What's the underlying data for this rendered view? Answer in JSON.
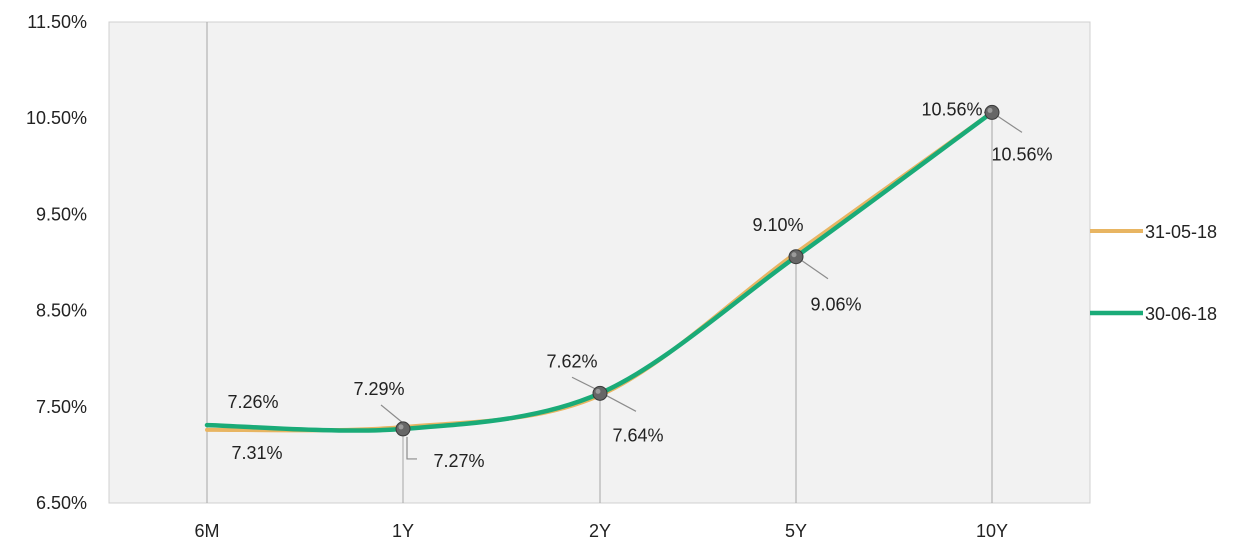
{
  "chart_data": {
    "type": "line",
    "categories": [
      "6M",
      "1Y",
      "2Y",
      "5Y",
      "10Y"
    ],
    "yticks": [
      "6.50%",
      "7.50%",
      "8.50%",
      "9.50%",
      "10.50%",
      "11.50%"
    ],
    "ylim": [
      6.5,
      11.5
    ],
    "grid": false,
    "legend_position": "right",
    "plot_background": "#f2f2f2",
    "series": [
      {
        "name": "31-05-18",
        "color": "#e8b562",
        "values": [
          7.26,
          7.29,
          7.62,
          9.1,
          10.56
        ],
        "labels": [
          "7.26%",
          "7.29%",
          "7.62%",
          "9.10%",
          "10.56%"
        ]
      },
      {
        "name": "30-06-18",
        "color": "#1aab78",
        "values": [
          7.31,
          7.27,
          7.64,
          9.06,
          10.56
        ],
        "labels": [
          "7.31%",
          "7.27%",
          "7.64%",
          "9.06%",
          "10.56%"
        ]
      }
    ]
  }
}
